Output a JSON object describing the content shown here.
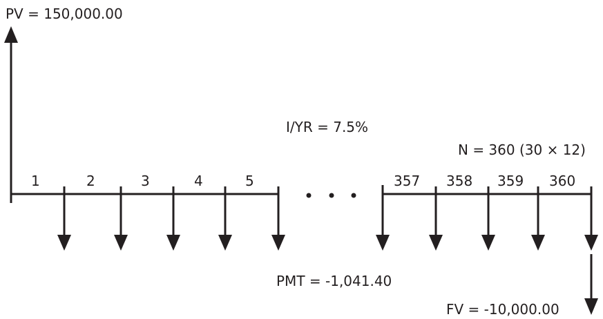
{
  "diagram": {
    "pv_label": "PV = 150,000.00",
    "iyr_label": "I/YR = 7.5%",
    "n_label": "N = 360 (30 ×  12)",
    "pmt_label": "PMT = -1,041.40",
    "fv_label": "FV = -10,000.00",
    "periods_left": [
      "1",
      "2",
      "3",
      "4",
      "5"
    ],
    "periods_right": [
      "357",
      "358",
      "359",
      "360"
    ],
    "ellipsis": "• • •",
    "color": "#231f20"
  }
}
